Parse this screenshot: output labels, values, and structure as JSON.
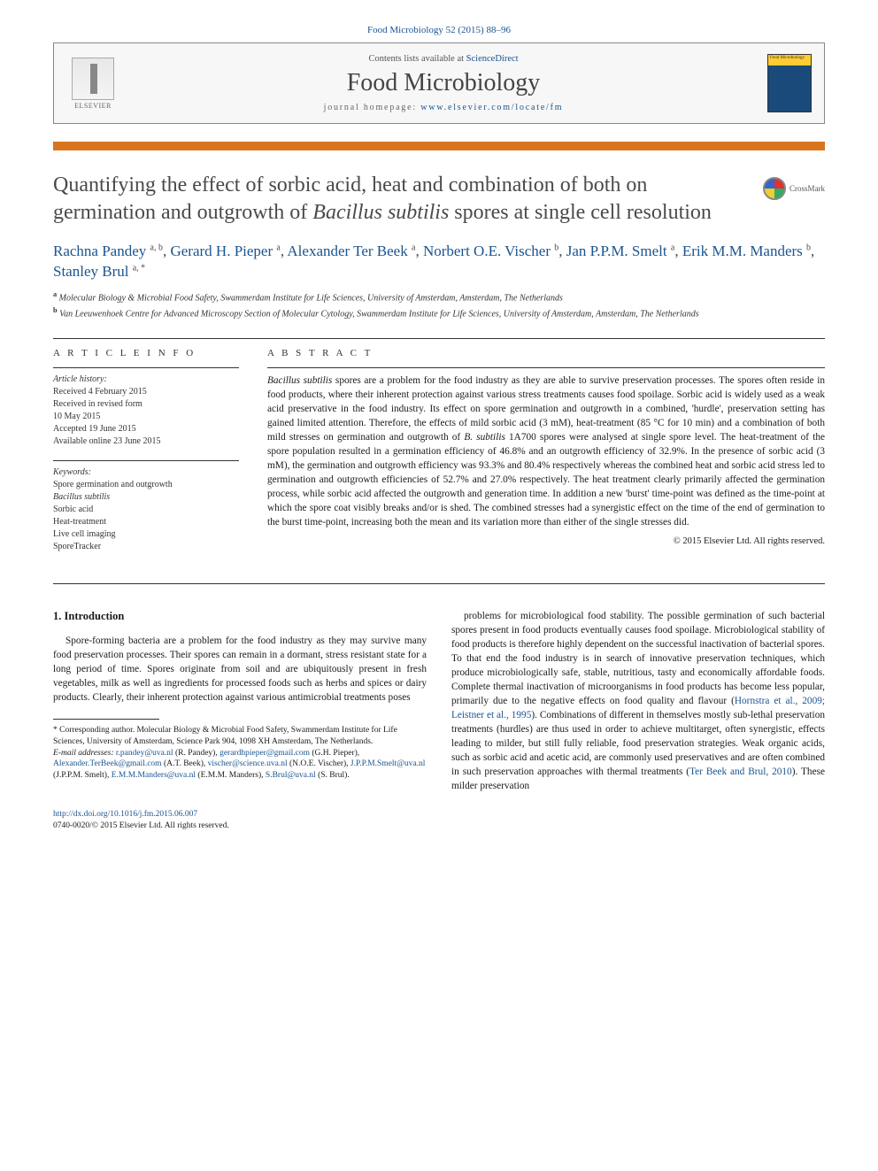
{
  "journal_ref": "Food Microbiology 52 (2015) 88–96",
  "header": {
    "contents_prefix": "Contents lists available at ",
    "contents_link": "ScienceDirect",
    "journal_name": "Food Microbiology",
    "homepage_prefix": "journal homepage: ",
    "homepage_url": "www.elsevier.com/locate/fm",
    "publisher": "ELSEVIER",
    "cover_label": "Food Microbiology"
  },
  "crossmark": "CrossMark",
  "title_html": "Quantifying the effect of sorbic acid, heat and combination of both on germination and outgrowth of <em>Bacillus subtilis</em> spores at single cell resolution",
  "authors_html": "<a>Rachna Pandey</a> <sup>a, b</sup>, <a>Gerard H. Pieper</a> <sup>a</sup>, <a>Alexander Ter Beek</a> <sup>a</sup>, <a>Norbert O.E. Vischer</a> <sup>b</sup>, <a>Jan P.P.M. Smelt</a> <sup>a</sup>, <a>Erik M.M. Manders</a> <sup>b</sup>, <a>Stanley Brul</a> <sup>a, *</sup>",
  "affiliations": [
    {
      "sup": "a",
      "text": "Molecular Biology & Microbial Food Safety, Swammerdam Institute for Life Sciences, University of Amsterdam, Amsterdam, The Netherlands"
    },
    {
      "sup": "b",
      "text": "Van Leeuwenhoek Centre for Advanced Microscopy Section of Molecular Cytology, Swammerdam Institute for Life Sciences, University of Amsterdam, Amsterdam, The Netherlands"
    }
  ],
  "article_info": {
    "head": "A R T I C L E   I N F O",
    "history_label": "Article history:",
    "history": [
      "Received 4 February 2015",
      "Received in revised form",
      "10 May 2015",
      "Accepted 19 June 2015",
      "Available online 23 June 2015"
    ],
    "keywords_label": "Keywords:",
    "keywords": [
      "Spore germination and outgrowth",
      "Bacillus subtilis",
      "Sorbic acid",
      "Heat-treatment",
      "Live cell imaging",
      "SporeTracker"
    ]
  },
  "abstract": {
    "head": "A B S T R A C T",
    "text_html": "<em>Bacillus subtilis</em> spores are a problem for the food industry as they are able to survive preservation processes. The spores often reside in food products, where their inherent protection against various stress treatments causes food spoilage. Sorbic acid is widely used as a weak acid preservative in the food industry. Its effect on spore germination and outgrowth in a combined, 'hurdle', preservation setting has gained limited attention. Therefore, the effects of mild sorbic acid (3 mM), heat-treatment (85 °C for 10 min) and a combination of both mild stresses on germination and outgrowth of <em>B. subtilis</em> 1A700 spores were analysed at single spore level. The heat-treatment of the spore population resulted in a germination efficiency of 46.8% and an outgrowth efficiency of 32.9%. In the presence of sorbic acid (3 mM), the germination and outgrowth efficiency was 93.3% and 80.4% respectively whereas the combined heat and sorbic acid stress led to germination and outgrowth efficiencies of 52.7% and 27.0% respectively. The heat treatment clearly primarily affected the germination process, while sorbic acid affected the outgrowth and generation time. In addition a new 'burst' time-point was defined as the time-point at which the spore coat visibly breaks and/or is shed. The combined stresses had a synergistic effect on the time of the end of germination to the burst time-point, increasing both the mean and its variation more than either of the single stresses did.",
    "copyright": "© 2015 Elsevier Ltd. All rights reserved."
  },
  "section1": {
    "heading": "1. Introduction",
    "col1": "Spore-forming bacteria are a problem for the food industry as they may survive many food preservation processes. Their spores can remain in a dormant, stress resistant state for a long period of time. Spores originate from soil and are ubiquitously present in fresh vegetables, milk as well as ingredients for processed foods such as herbs and spices or dairy products. Clearly, their inherent protection against various antimicrobial treatments poses",
    "col2_html": "problems for microbiological food stability. The possible germination of such bacterial spores present in food products eventually causes food spoilage. Microbiological stability of food products is therefore highly dependent on the successful inactivation of bacterial spores. To that end the food industry is in search of innovative preservation techniques, which produce microbiologically safe, stable, nutritious, tasty and economically affordable foods. Complete thermal inactivation of microorganisms in food products has become less popular, primarily due to the negative effects on food quality and flavour (<a>Hornstra et al., 2009; Leistner et al., 1995</a>). Combinations of different in themselves mostly sub-lethal preservation treatments (hurdles) are thus used in order to achieve multitarget, often synergistic, effects leading to milder, but still fully reliable, food preservation strategies. Weak organic acids, such as sorbic acid and acetic acid, are commonly used preservatives and are often combined in such preservation approaches with thermal treatments (<a>Ter Beek and Brul, 2010</a>). These milder preservation"
  },
  "corresponding": {
    "star": "*",
    "text": "Corresponding author. Molecular Biology & Microbial Food Safety, Swammerdam Institute for Life Sciences, University of Amsterdam, Science Park 904, 1098 XH Amsterdam, The Netherlands.",
    "emails_label": "E-mail addresses:",
    "emails_html": "<a>r.pandey@uva.nl</a> (R. Pandey), <a>gerardhpieper@gmail.com</a> (G.H. Pieper), <a>Alexander.TerBeek@gmail.com</a> (A.T. Beek), <a>vischer@science.uva.nl</a> (N.O.E. Vischer), <a>J.P.P.M.Smelt@uva.nl</a> (J.P.P.M. Smelt), <a>E.M.M.Manders@uva.nl</a> (E.M.M. Manders), <a>S.Brul@uva.nl</a> (S. Brul)."
  },
  "footer": {
    "doi": "http://dx.doi.org/10.1016/j.fm.2015.06.007",
    "issn": "0740-0020/© 2015 Elsevier Ltd. All rights reserved."
  },
  "colors": {
    "link": "#1a5490",
    "accent_bar": "#d9751f",
    "text": "#1a1a1a",
    "muted": "#4a4a4a"
  }
}
